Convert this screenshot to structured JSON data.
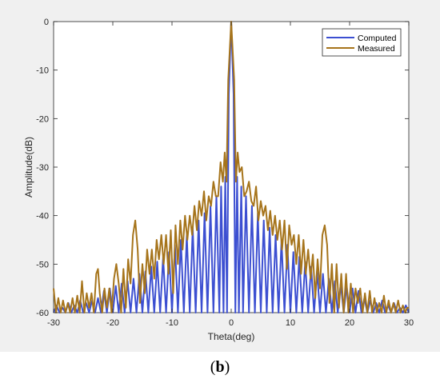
{
  "caption": {
    "open": "(",
    "letter": "b",
    "close": ")"
  },
  "chart_data": {
    "type": "line",
    "title": "",
    "xlabel": "Theta(deg)",
    "ylabel": "Amplitude(dB)",
    "xlim": [
      -30,
      30
    ],
    "ylim": [
      -60,
      0
    ],
    "xticks": [
      -30,
      -20,
      -10,
      0,
      10,
      20,
      30
    ],
    "yticks": [
      0,
      -10,
      -20,
      -30,
      -40,
      -50,
      -60
    ],
    "grid": false,
    "legend_position": "top-right",
    "series": [
      {
        "name": "Computed",
        "color": "#3c4fd1",
        "points": [
          [
            -30,
            -60
          ],
          [
            -29.5,
            -58.5
          ],
          [
            -29,
            -60
          ],
          [
            -28.5,
            -59
          ],
          [
            -28,
            -60
          ],
          [
            -27.5,
            -58
          ],
          [
            -27,
            -60
          ],
          [
            -26.5,
            -58.5
          ],
          [
            -26,
            -60
          ],
          [
            -25.5,
            -57.5
          ],
          [
            -25,
            -60
          ],
          [
            -24.5,
            -58
          ],
          [
            -24,
            -60
          ],
          [
            -23.5,
            -57.5
          ],
          [
            -23,
            -60
          ],
          [
            -22.5,
            -57
          ],
          [
            -22,
            -60
          ],
          [
            -21.5,
            -55.5
          ],
          [
            -21,
            -60
          ],
          [
            -20.5,
            -55
          ],
          [
            -20,
            -60
          ],
          [
            -19.5,
            -54.5
          ],
          [
            -19,
            -60
          ],
          [
            -18.5,
            -54
          ],
          [
            -18,
            -60
          ],
          [
            -17.5,
            -53.5
          ],
          [
            -17,
            -60
          ],
          [
            -16.5,
            -53
          ],
          [
            -16,
            -60
          ],
          [
            -15.5,
            -52
          ],
          [
            -15,
            -60
          ],
          [
            -14.5,
            -51.5
          ],
          [
            -14,
            -60
          ],
          [
            -13.5,
            -50.5
          ],
          [
            -13,
            -60
          ],
          [
            -12.5,
            -49.5
          ],
          [
            -12,
            -60
          ],
          [
            -11.5,
            -48.5
          ],
          [
            -11,
            -60
          ],
          [
            -10.5,
            -47.5
          ],
          [
            -10,
            -60
          ],
          [
            -9.5,
            -46
          ],
          [
            -9,
            -60
          ],
          [
            -8.5,
            -45
          ],
          [
            -8,
            -60
          ],
          [
            -7.5,
            -44
          ],
          [
            -7,
            -60
          ],
          [
            -6.5,
            -42.5
          ],
          [
            -6,
            -60
          ],
          [
            -5.5,
            -41
          ],
          [
            -5,
            -60
          ],
          [
            -4.5,
            -39.5
          ],
          [
            -4,
            -60
          ],
          [
            -3.5,
            -38
          ],
          [
            -3,
            -60
          ],
          [
            -2.5,
            -36
          ],
          [
            -2,
            -60
          ],
          [
            -1.7,
            -34
          ],
          [
            -1.3,
            -60
          ],
          [
            -1,
            -32
          ],
          [
            -0.7,
            -60
          ],
          [
            -0.4,
            -15
          ],
          [
            0,
            0
          ],
          [
            0.4,
            -15
          ],
          [
            0.7,
            -60
          ],
          [
            1,
            -32
          ],
          [
            1.3,
            -60
          ],
          [
            1.7,
            -34
          ],
          [
            2,
            -60
          ],
          [
            2.5,
            -36
          ],
          [
            3,
            -60
          ],
          [
            3.5,
            -38
          ],
          [
            4,
            -60
          ],
          [
            4.5,
            -39.5
          ],
          [
            5,
            -60
          ],
          [
            5.5,
            -41
          ],
          [
            6,
            -60
          ],
          [
            6.5,
            -42.5
          ],
          [
            7,
            -60
          ],
          [
            7.5,
            -44
          ],
          [
            8,
            -60
          ],
          [
            8.5,
            -45
          ],
          [
            9,
            -60
          ],
          [
            9.5,
            -46
          ],
          [
            10,
            -60
          ],
          [
            10.5,
            -47.5
          ],
          [
            11,
            -60
          ],
          [
            11.5,
            -48.5
          ],
          [
            12,
            -60
          ],
          [
            12.5,
            -49.5
          ],
          [
            13,
            -60
          ],
          [
            13.5,
            -50.5
          ],
          [
            14,
            -60
          ],
          [
            14.5,
            -51.5
          ],
          [
            15,
            -60
          ],
          [
            15.5,
            -52
          ],
          [
            16,
            -60
          ],
          [
            16.5,
            -53
          ],
          [
            17,
            -60
          ],
          [
            17.5,
            -53.5
          ],
          [
            18,
            -60
          ],
          [
            18.5,
            -54
          ],
          [
            19,
            -60
          ],
          [
            19.5,
            -54.5
          ],
          [
            20,
            -60
          ],
          [
            20.5,
            -55
          ],
          [
            21,
            -60
          ],
          [
            21.5,
            -55.5
          ],
          [
            22,
            -60
          ],
          [
            22.5,
            -57
          ],
          [
            23,
            -60
          ],
          [
            23.5,
            -57.5
          ],
          [
            24,
            -60
          ],
          [
            24.5,
            -58
          ],
          [
            25,
            -60
          ],
          [
            25.5,
            -57.5
          ],
          [
            26,
            -60
          ],
          [
            26.5,
            -58.5
          ],
          [
            27,
            -60
          ],
          [
            27.5,
            -58
          ],
          [
            28,
            -60
          ],
          [
            28.5,
            -59
          ],
          [
            29,
            -60
          ],
          [
            29.5,
            -58.5
          ],
          [
            30,
            -60
          ]
        ]
      },
      {
        "name": "Measured",
        "color": "#a6741b",
        "points": [
          [
            -30,
            -55
          ],
          [
            -29.6,
            -60
          ],
          [
            -29.2,
            -57
          ],
          [
            -28.8,
            -60
          ],
          [
            -28.4,
            -57.5
          ],
          [
            -28,
            -60
          ],
          [
            -27.6,
            -58
          ],
          [
            -27.2,
            -60
          ],
          [
            -26.8,
            -57
          ],
          [
            -26.4,
            -60
          ],
          [
            -26,
            -56.5
          ],
          [
            -25.6,
            -60
          ],
          [
            -25.2,
            -53.5
          ],
          [
            -24.8,
            -60
          ],
          [
            -24.4,
            -56
          ],
          [
            -24,
            -59
          ],
          [
            -23.6,
            -56
          ],
          [
            -23.2,
            -60
          ],
          [
            -22.8,
            -52
          ],
          [
            -22.5,
            -51
          ],
          [
            -22.2,
            -56
          ],
          [
            -21.8,
            -60
          ],
          [
            -21.4,
            -55
          ],
          [
            -21,
            -59
          ],
          [
            -20.6,
            -55
          ],
          [
            -20.2,
            -60
          ],
          [
            -19.8,
            -53
          ],
          [
            -19.4,
            -50
          ],
          [
            -19,
            -54
          ],
          [
            -18.6,
            -60
          ],
          [
            -18.2,
            -51
          ],
          [
            -17.8,
            -59
          ],
          [
            -17.4,
            -49
          ],
          [
            -17,
            -54
          ],
          [
            -16.6,
            -44
          ],
          [
            -16.2,
            -41
          ],
          [
            -15.8,
            -47
          ],
          [
            -15.4,
            -58
          ],
          [
            -15,
            -50
          ],
          [
            -14.6,
            -56
          ],
          [
            -14.2,
            -47
          ],
          [
            -13.8,
            -52
          ],
          [
            -13.4,
            -47
          ],
          [
            -13,
            -53
          ],
          [
            -12.6,
            -45
          ],
          [
            -12.2,
            -49
          ],
          [
            -11.8,
            -44
          ],
          [
            -11.4,
            -50
          ],
          [
            -11,
            -44
          ],
          [
            -10.6,
            -52
          ],
          [
            -10.2,
            -43
          ],
          [
            -9.8,
            -56
          ],
          [
            -9.4,
            -42
          ],
          [
            -9,
            -50
          ],
          [
            -8.6,
            -41
          ],
          [
            -8.2,
            -47
          ],
          [
            -7.8,
            -40
          ],
          [
            -7.4,
            -45
          ],
          [
            -7,
            -40
          ],
          [
            -6.6,
            -44
          ],
          [
            -6.2,
            -38
          ],
          [
            -5.8,
            -43
          ],
          [
            -5.4,
            -37
          ],
          [
            -5,
            -40
          ],
          [
            -4.6,
            -35
          ],
          [
            -4.2,
            -41
          ],
          [
            -3.8,
            -36
          ],
          [
            -3.4,
            -38
          ],
          [
            -3,
            -33
          ],
          [
            -2.6,
            -36
          ],
          [
            -2.2,
            -36
          ],
          [
            -1.8,
            -29
          ],
          [
            -1.4,
            -33
          ],
          [
            -1.1,
            -27
          ],
          [
            -0.8,
            -33
          ],
          [
            -0.5,
            -12
          ],
          [
            0,
            0
          ],
          [
            0.5,
            -12
          ],
          [
            0.8,
            -33
          ],
          [
            1.1,
            -27
          ],
          [
            1.4,
            -31
          ],
          [
            1.8,
            -30
          ],
          [
            2.2,
            -36
          ],
          [
            2.6,
            -35
          ],
          [
            3,
            -33
          ],
          [
            3.4,
            -37
          ],
          [
            3.8,
            -38
          ],
          [
            4.2,
            -34
          ],
          [
            4.6,
            -41
          ],
          [
            5,
            -37
          ],
          [
            5.4,
            -40
          ],
          [
            5.8,
            -38
          ],
          [
            6.2,
            -43
          ],
          [
            6.6,
            -39
          ],
          [
            7,
            -44
          ],
          [
            7.4,
            -40
          ],
          [
            7.8,
            -45
          ],
          [
            8.2,
            -41
          ],
          [
            8.6,
            -47
          ],
          [
            9,
            -41
          ],
          [
            9.4,
            -51
          ],
          [
            9.8,
            -42
          ],
          [
            10.2,
            -46
          ],
          [
            10.6,
            -44
          ],
          [
            11,
            -50
          ],
          [
            11.4,
            -44
          ],
          [
            11.8,
            -52
          ],
          [
            12.2,
            -45
          ],
          [
            12.6,
            -52
          ],
          [
            13,
            -47
          ],
          [
            13.4,
            -53
          ],
          [
            13.8,
            -48
          ],
          [
            14.2,
            -57
          ],
          [
            14.6,
            -49
          ],
          [
            15,
            -55
          ],
          [
            15.4,
            -44
          ],
          [
            15.8,
            -42
          ],
          [
            16.2,
            -46
          ],
          [
            16.6,
            -58
          ],
          [
            17,
            -50
          ],
          [
            17.4,
            -60
          ],
          [
            17.8,
            -50
          ],
          [
            18.2,
            -59
          ],
          [
            18.6,
            -52
          ],
          [
            19,
            -60
          ],
          [
            19.4,
            -52
          ],
          [
            19.8,
            -60
          ],
          [
            20.2,
            -54
          ],
          [
            20.6,
            -60
          ],
          [
            21,
            -55
          ],
          [
            21.4,
            -58
          ],
          [
            21.8,
            -55
          ],
          [
            22.2,
            -60
          ],
          [
            22.6,
            -56
          ],
          [
            23,
            -60
          ],
          [
            23.4,
            -55.5
          ],
          [
            23.8,
            -60
          ],
          [
            24.2,
            -57
          ],
          [
            24.6,
            -60
          ],
          [
            25,
            -58
          ],
          [
            25.4,
            -60
          ],
          [
            25.8,
            -56.5
          ],
          [
            26.2,
            -60
          ],
          [
            26.6,
            -57.5
          ],
          [
            27,
            -60
          ],
          [
            27.4,
            -58
          ],
          [
            27.8,
            -60
          ],
          [
            28.2,
            -57.5
          ],
          [
            28.6,
            -60
          ],
          [
            29,
            -58.5
          ],
          [
            29.4,
            -60
          ],
          [
            29.7,
            -59
          ],
          [
            30,
            -59
          ]
        ]
      }
    ]
  }
}
